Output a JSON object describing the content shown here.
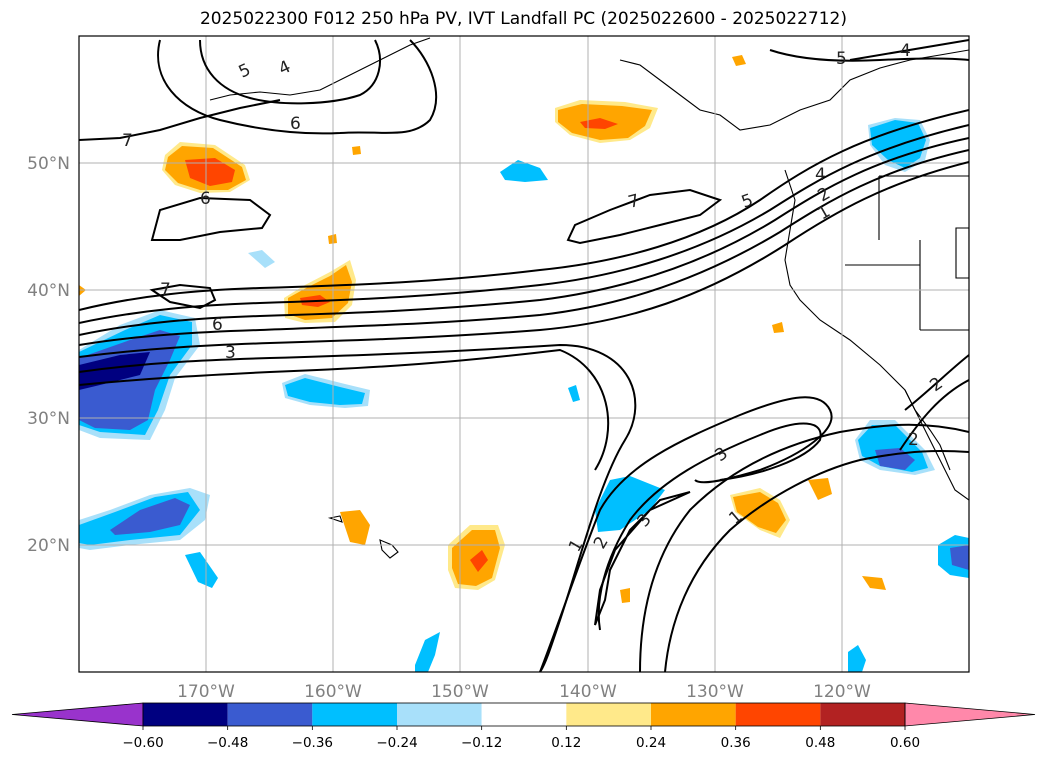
{
  "chart_data": {
    "type": "map-contour",
    "title": "2025022300 F012 250 hPa PV, IVT Landfall PC (2025022600 - 2025022712)",
    "lon_range": [
      -180,
      -110
    ],
    "lat_range": [
      10,
      60
    ],
    "lon_ticks": [
      "170°W",
      "160°W",
      "150°W",
      "140°W",
      "130°W",
      "120°W"
    ],
    "lon_tick_values": [
      -170,
      -160,
      -150,
      -140,
      -130,
      -120
    ],
    "lat_ticks": [
      "20°N",
      "30°N",
      "40°N",
      "50°N"
    ],
    "lat_tick_values": [
      20,
      30,
      40,
      50
    ],
    "grid": true,
    "colorbar": {
      "orientation": "horizontal",
      "extend": "both",
      "levels": [
        -0.6,
        -0.48,
        -0.36,
        -0.24,
        -0.12,
        0.12,
        0.24,
        0.36,
        0.48,
        0.6
      ],
      "tick_labels": [
        "−0.60",
        "−0.48",
        "−0.36",
        "−0.24",
        "−0.12",
        "0.12",
        "0.24",
        "0.36",
        "0.48",
        "0.60"
      ],
      "colors": [
        "#9933cc",
        "#000080",
        "#3a5bd0",
        "#00bfff",
        "#a8e0fa",
        "#ffffff",
        "#ffe98a",
        "#ffa500",
        "#ff4500",
        "#b22222",
        "#ff88aa"
      ]
    },
    "pv_contour_labels": [
      "5",
      "4",
      "6",
      "7",
      "6",
      "7",
      "6",
      "3",
      "7",
      "5",
      "4",
      "2",
      "1",
      "5",
      "4",
      "2",
      "3",
      "1",
      "2",
      "3",
      "1",
      "2",
      "2"
    ]
  }
}
